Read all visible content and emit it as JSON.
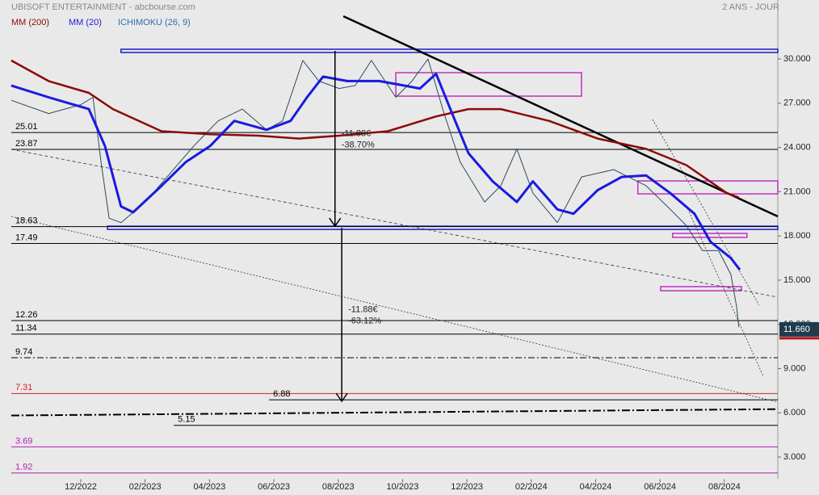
{
  "chart_data": {
    "type": "line",
    "title": "UBISOFT ENTERTAINMENT - abcbourse.com",
    "subtitle": "2 ANS - JOUR",
    "indicator_label": "ICHIMOKU (26, 9)",
    "xlim": [
      -2.51,
      21.66
    ],
    "ylim": [
      1.5,
      34
    ],
    "xticks": [
      {
        "value": 0,
        "label": "12/2022"
      },
      {
        "value": 2,
        "label": "02/2023"
      },
      {
        "value": 4,
        "label": "04/2023"
      },
      {
        "value": 6,
        "label": "06/2023"
      },
      {
        "value": 8,
        "label": "08/2023"
      },
      {
        "value": 10,
        "label": "10/2023"
      },
      {
        "value": 12,
        "label": "12/2023"
      },
      {
        "value": 14,
        "label": "02/2024"
      },
      {
        "value": 16,
        "label": "04/2024"
      },
      {
        "value": 18,
        "label": "06/2024"
      },
      {
        "value": 20,
        "label": "08/2024"
      }
    ],
    "yticks": [
      {
        "value": 30,
        "label": "30.000"
      },
      {
        "value": 27,
        "label": "27.000"
      },
      {
        "value": 24,
        "label": "24.000"
      },
      {
        "value": 21,
        "label": "21.000"
      },
      {
        "value": 18,
        "label": "18.000"
      },
      {
        "value": 15,
        "label": "15.000"
      },
      {
        "value": 12,
        "label": "12.000"
      },
      {
        "value": 9,
        "label": "9.000"
      },
      {
        "value": 6,
        "label": "6.000"
      },
      {
        "value": 3,
        "label": "3.000"
      }
    ],
    "last_price": {
      "value": 11.66,
      "label": "11.660"
    },
    "price": {
      "color": "#2e4a5c",
      "x": [
        -2.16,
        -1.0,
        0,
        0.38,
        0.63,
        0.88,
        1.25,
        2.01,
        2.76,
        3.51,
        4.27,
        5.02,
        5.77,
        6.27,
        6.9,
        7.4,
        8.03,
        8.53,
        9.03,
        9.79,
        10.29,
        10.79,
        11.29,
        11.79,
        12.55,
        13.05,
        13.55,
        14.05,
        14.81,
        15.56,
        16.56,
        17.57,
        18.32,
        18.82,
        19.32,
        19.82,
        20.2,
        20.38,
        20.45
      ],
      "values": [
        27.2,
        26.3,
        26.9,
        27.4,
        23.0,
        19.2,
        18.9,
        20.3,
        22.2,
        24.1,
        25.8,
        26.6,
        25.2,
        25.8,
        29.9,
        28.5,
        28.0,
        28.2,
        29.9,
        27.4,
        28.5,
        30.0,
        26.3,
        23.0,
        20.3,
        21.4,
        23.9,
        20.9,
        18.9,
        22.0,
        22.5,
        21.4,
        19.8,
        18.7,
        17.0,
        17.0,
        15.4,
        13.2,
        11.8
      ]
    },
    "series": [
      {
        "name": "MM (200)",
        "color": "#8b0a0a",
        "x": [
          -2.16,
          -1.0,
          0.25,
          1.0,
          2.51,
          4.02,
          5.52,
          6.78,
          8.03,
          9.54,
          11.04,
          12.05,
          13.05,
          14.55,
          16.06,
          17.57,
          18.82,
          20.08,
          20.45
        ],
        "values": [
          29.9,
          28.5,
          27.7,
          26.6,
          25.1,
          24.9,
          24.8,
          24.6,
          24.8,
          25.1,
          26.1,
          26.6,
          26.6,
          25.8,
          24.6,
          23.9,
          22.8,
          20.9,
          20.6
        ]
      },
      {
        "name": "MM (20)",
        "color": "#1a1ae0",
        "x": [
          -2.16,
          -1.0,
          0.25,
          0.75,
          1.25,
          1.63,
          2.51,
          3.26,
          4.02,
          4.77,
          5.77,
          6.52,
          7.03,
          7.53,
          8.28,
          9.28,
          10.04,
          10.54,
          11.04,
          11.54,
          12.05,
          12.8,
          13.55,
          14.05,
          14.81,
          15.31,
          16.06,
          16.81,
          17.57,
          18.32,
          19.07,
          19.57,
          20.2,
          20.48
        ],
        "values": [
          28.2,
          27.4,
          26.6,
          24.1,
          20.0,
          19.6,
          21.4,
          23.0,
          24.1,
          25.8,
          25.2,
          25.8,
          27.4,
          28.8,
          28.5,
          28.5,
          28.2,
          28.0,
          29.0,
          26.3,
          23.6,
          21.7,
          20.3,
          21.7,
          19.8,
          19.5,
          21.1,
          22.0,
          22.1,
          20.9,
          19.5,
          17.6,
          16.5,
          15.7
        ]
      }
    ],
    "levels": [
      {
        "value": 25.01,
        "color": "#000000",
        "from": -2.16,
        "dash": "none"
      },
      {
        "value": 23.87,
        "color": "#000000",
        "from": -2.16,
        "dash": "none"
      },
      {
        "value": 18.63,
        "color": "#000000",
        "from": -2.16,
        "dash": "none"
      },
      {
        "value": 17.49,
        "color": "#000000",
        "from": -2.16,
        "dash": "none"
      },
      {
        "value": 12.26,
        "color": "#000000",
        "from": -2.16,
        "dash": "none"
      },
      {
        "value": 11.34,
        "color": "#000000",
        "from": -2.16,
        "dash": "none"
      },
      {
        "value": 9.74,
        "color": "#000000",
        "from": -2.16,
        "dash": "8 3 2 3"
      },
      {
        "value": 7.31,
        "color": "#d42020",
        "from": -2.16,
        "dash": "none"
      },
      {
        "value": 6.88,
        "color": "#000000",
        "from": 5.85,
        "dash": "none"
      },
      {
        "value": 5.15,
        "color": "#000000",
        "from": 2.89,
        "dash": "none"
      },
      {
        "value": 3.69,
        "color": "#b020b0",
        "from": -2.16,
        "dash": "none"
      },
      {
        "value": 1.92,
        "color": "#b020b0",
        "from": -2.16,
        "dash": "none"
      }
    ],
    "trendlines": [
      {
        "points": [
          [
            8.16,
            32.9
          ],
          [
            21.66,
            19.32
          ]
        ],
        "color": "#000000",
        "width": 2.5,
        "dash": "none"
      },
      {
        "points": [
          [
            -2.16,
            23.87
          ],
          [
            21.66,
            13.84
          ]
        ],
        "color": "#333333",
        "width": 0.8,
        "dash": "4 3"
      },
      {
        "points": [
          [
            -2.16,
            19.32
          ],
          [
            21.66,
            6.73
          ]
        ],
        "color": "#333333",
        "width": 0.8,
        "dash": "2 2"
      },
      {
        "points": [
          [
            17.77,
            25.89
          ],
          [
            21.08,
            13.3
          ]
        ],
        "color": "#333333",
        "width": 0.8,
        "dash": "2 2"
      },
      {
        "points": [
          [
            18.82,
            20.03
          ],
          [
            21.2,
            8.53
          ]
        ],
        "color": "#333333",
        "width": 0.8,
        "dash": "2 2"
      },
      {
        "points": [
          [
            -2.16,
            5.82
          ],
          [
            21.66,
            6.25
          ]
        ],
        "color": "#000000",
        "width": 2,
        "dash": "10 3 2 3"
      }
    ],
    "zones": [
      {
        "x": [
          1.25,
          21.66
        ],
        "y": [
          30.44,
          30.66
        ],
        "color": "#1a1acc"
      },
      {
        "x": [
          0.83,
          21.66
        ],
        "y": [
          18.44,
          18.66
        ],
        "color": "#1a1acc"
      },
      {
        "x": [
          9.79,
          15.56
        ],
        "y": [
          27.48,
          29.07
        ],
        "color": "#c030c0"
      },
      {
        "x": [
          17.31,
          21.66
        ],
        "y": [
          20.85,
          21.73
        ],
        "color": "#c030c0"
      },
      {
        "x": [
          18.39,
          20.7
        ],
        "y": [
          17.9,
          18.17
        ],
        "color": "#c030c0"
      },
      {
        "x": [
          18.02,
          20.53
        ],
        "y": [
          14.28,
          14.56
        ],
        "color": "#c030c0"
      }
    ],
    "arrows": [
      {
        "x": 7.9,
        "from": 30.55,
        "to": 18.66,
        "labels": [
          "-11.88€",
          "-38.70%"
        ]
      },
      {
        "x": 8.11,
        "from": 18.55,
        "to": 6.78,
        "labels": [
          "-11.88€",
          "-63.12%"
        ]
      }
    ]
  }
}
